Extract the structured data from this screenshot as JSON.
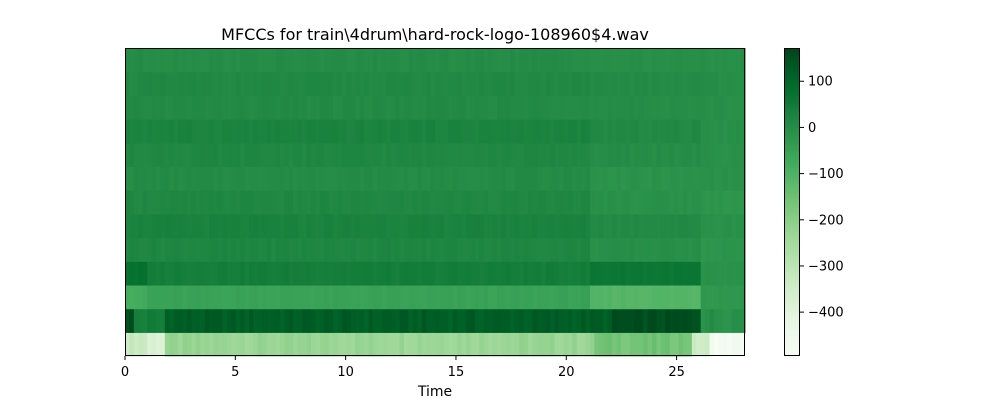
{
  "chart_data": {
    "type": "heatmap",
    "title": "MFCCs for train\\4drum\\hard-rock-logo-108960$4.wav",
    "xlabel": "Time",
    "ylabel": "",
    "xlim": [
      0,
      28.1
    ],
    "x_ticks": [
      0,
      5,
      10,
      15,
      20,
      25
    ],
    "x_tick_labels": [
      "0",
      "5",
      "10",
      "15",
      "20",
      "25"
    ],
    "n_coefficients": 13,
    "colormap": "Greens",
    "colorbar": {
      "vmin": -495,
      "vmax": 172,
      "ticks": [
        100,
        0,
        -100,
        -200,
        -300,
        -400
      ],
      "tick_labels": [
        "100",
        "0",
        "−100",
        "−200",
        "−300",
        "−400"
      ]
    },
    "coefficient_profiles": [
      {
        "index": 0,
        "base": -250,
        "segments": [
          [
            0,
            1,
            -330
          ],
          [
            1,
            1.8,
            -380
          ],
          [
            1.8,
            21.3,
            -230
          ],
          [
            21.3,
            25.7,
            -160
          ],
          [
            25.7,
            26.5,
            -350
          ],
          [
            26.5,
            28.1,
            -480
          ]
        ]
      },
      {
        "index": 1,
        "base": 120,
        "segments": [
          [
            0,
            0.4,
            150
          ],
          [
            0.4,
            1.8,
            40
          ],
          [
            1.8,
            22,
            120
          ],
          [
            22,
            26,
            150
          ],
          [
            26,
            28.1,
            -5
          ]
        ]
      },
      {
        "index": 2,
        "base": -60,
        "segments": [
          [
            0,
            1,
            -80
          ],
          [
            1,
            21,
            -55
          ],
          [
            21,
            26,
            -110
          ],
          [
            26,
            28.1,
            -25
          ]
        ]
      },
      {
        "index": 3,
        "base": 40,
        "segments": [
          [
            0,
            1,
            75
          ],
          [
            1,
            21,
            42
          ],
          [
            21,
            26,
            60
          ],
          [
            26,
            28.1,
            -15
          ]
        ]
      },
      {
        "index": 4,
        "base": 15,
        "segments": [
          [
            0,
            21,
            18
          ],
          [
            21,
            26,
            -5
          ],
          [
            26,
            28.1,
            -20
          ]
        ]
      },
      {
        "index": 5,
        "base": 20,
        "segments": [
          [
            0,
            21,
            28
          ],
          [
            21,
            26,
            10
          ],
          [
            26,
            28.1,
            -10
          ]
        ]
      },
      {
        "index": 6,
        "base": 10,
        "segments": [
          [
            0,
            21,
            15
          ],
          [
            21,
            26,
            -10
          ],
          [
            26,
            28.1,
            -20
          ]
        ]
      },
      {
        "index": 7,
        "base": 5,
        "segments": [
          [
            0,
            21,
            5
          ],
          [
            21,
            26,
            -15
          ],
          [
            26,
            28.1,
            -10
          ]
        ]
      },
      {
        "index": 8,
        "base": 10,
        "segments": [
          [
            0,
            21,
            15
          ],
          [
            21,
            26,
            0
          ],
          [
            26,
            28.1,
            -10
          ]
        ]
      },
      {
        "index": 9,
        "base": 20,
        "segments": [
          [
            0,
            21,
            25
          ],
          [
            21,
            26,
            10
          ],
          [
            26,
            28.1,
            -5
          ]
        ]
      },
      {
        "index": 10,
        "base": 5,
        "segments": [
          [
            0,
            21,
            8
          ],
          [
            21,
            26,
            0
          ],
          [
            26,
            28.1,
            -5
          ]
        ]
      },
      {
        "index": 11,
        "base": 10,
        "segments": [
          [
            0,
            21,
            12
          ],
          [
            21,
            26,
            5
          ],
          [
            26,
            28.1,
            0
          ]
        ]
      },
      {
        "index": 12,
        "base": 0,
        "segments": [
          [
            0,
            21,
            2
          ],
          [
            21,
            26,
            -5
          ],
          [
            26,
            28.1,
            -5
          ]
        ]
      }
    ]
  }
}
